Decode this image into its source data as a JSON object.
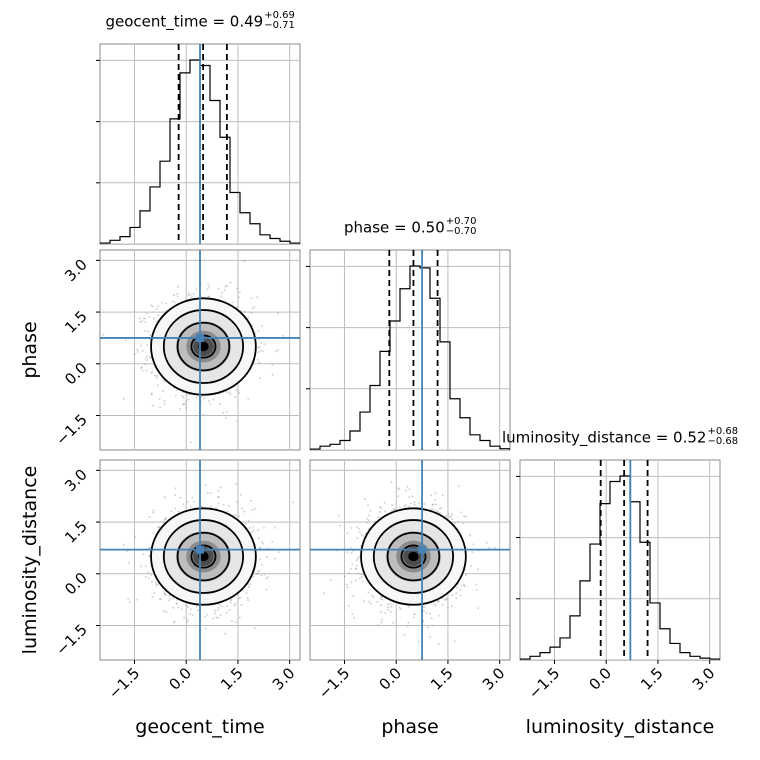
{
  "chart_data": {
    "type": "corner",
    "parameters": [
      "geocent_time",
      "phase",
      "luminosity_distance"
    ],
    "axis_labels": [
      "geocent_time",
      "phase",
      "luminosity_distance"
    ],
    "range": [
      -2.5,
      3.3
    ],
    "ticks": [
      -1.5,
      0.0,
      1.5,
      3.0
    ],
    "tick_labels": [
      "−1.5",
      "0.0",
      "1.5",
      "3.0"
    ],
    "truths": [
      0.4,
      0.75,
      0.7
    ],
    "titles": [
      {
        "text": "geocent_time = 0.49",
        "plus": "+0.69",
        "minus": "−0.71"
      },
      {
        "text": "phase = 0.50",
        "plus": "+0.70",
        "minus": "−0.70"
      },
      {
        "text": "luminosity_distance = 0.52",
        "plus": "+0.68",
        "minus": "−0.68"
      }
    ],
    "quantiles": [
      [
        -0.22,
        0.49,
        1.18
      ],
      [
        -0.2,
        0.5,
        1.2
      ],
      [
        -0.16,
        0.52,
        1.2
      ]
    ],
    "hist_bin_edges": [
      -2.5,
      -2.21,
      -1.92,
      -1.63,
      -1.34,
      -1.05,
      -0.76,
      -0.47,
      -0.18,
      0.11,
      0.4,
      0.69,
      0.98,
      1.27,
      1.56,
      1.85,
      2.14,
      2.43,
      2.72,
      3.01,
      3.3
    ],
    "hist_counts": [
      [
        0.5,
        2,
        4,
        9,
        18,
        31,
        45,
        68,
        93,
        100,
        97,
        78,
        58,
        28,
        17,
        11,
        5,
        3,
        1.5,
        0.5
      ],
      [
        0.5,
        2,
        3,
        5,
        10,
        20,
        34,
        52,
        68,
        85,
        97,
        96,
        80,
        57,
        27,
        17,
        8,
        5,
        2,
        0.7
      ],
      [
        0.5,
        2,
        4,
        7,
        12,
        24,
        43,
        63,
        85,
        97,
        100,
        86,
        64,
        31,
        17,
        9,
        4,
        2,
        1,
        0.5
      ]
    ],
    "grid": true
  }
}
